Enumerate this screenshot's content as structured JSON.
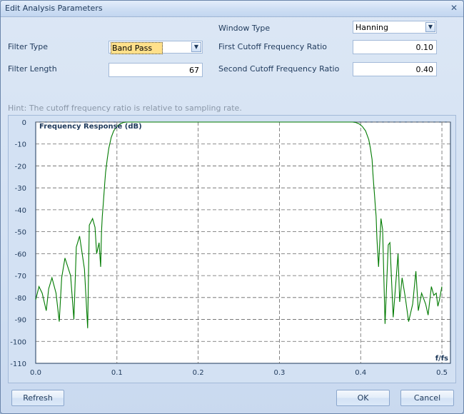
{
  "window": {
    "title": "Edit Analysis Parameters"
  },
  "form": {
    "filter_type": {
      "label": "Filter Type",
      "value": "Band Pass"
    },
    "filter_length": {
      "label": "Filter Length",
      "value": "67"
    },
    "window_type": {
      "label": "Window Type",
      "value": "Hanning"
    },
    "first_cutoff": {
      "label": "First Cutoff Frequency Ratio",
      "value": "0.10"
    },
    "second_cutoff": {
      "label": "Second Cutoff Frequency Ratio",
      "value": "0.40"
    }
  },
  "hint": "Hint: The cutoff frequency ratio is relative to sampling rate.",
  "buttons": {
    "refresh": "Refresh",
    "ok": "OK",
    "cancel": "Cancel"
  },
  "colors": {
    "curve": "#007a00",
    "plot_bg": "#ffffff",
    "grid": "#666666",
    "axis_text": "#1e395b"
  },
  "chart_data": {
    "type": "line",
    "title": "Frequency Response (dB)",
    "xlabel": "f/fs",
    "ylabel": "",
    "xlim": [
      0.0,
      0.5
    ],
    "ylim": [
      -110,
      0
    ],
    "x_ticks": [
      "0.0",
      "0.1",
      "0.2",
      "0.3",
      "0.4",
      "0.5"
    ],
    "y_ticks": [
      "0",
      "-10",
      "-20",
      "-30",
      "-40",
      "-50",
      "-60",
      "-70",
      "-80",
      "-90",
      "-100",
      "-110"
    ],
    "grid": true,
    "series": [
      {
        "x": [
          0.0,
          0.004,
          0.008,
          0.013,
          0.016,
          0.02,
          0.025,
          0.029,
          0.032,
          0.036,
          0.043,
          0.047,
          0.05,
          0.054,
          0.06,
          0.064,
          0.066,
          0.07,
          0.073,
          0.075,
          0.078,
          0.08,
          0.081,
          0.082,
          0.083,
          0.084,
          0.085,
          0.086,
          0.088,
          0.09,
          0.093,
          0.096,
          0.1,
          0.104,
          0.108,
          0.112,
          0.116,
          0.12,
          0.125,
          0.13,
          0.2,
          0.3,
          0.375,
          0.38,
          0.385,
          0.39,
          0.394,
          0.398,
          0.402,
          0.406,
          0.41,
          0.412,
          0.414,
          0.415,
          0.416,
          0.417,
          0.418,
          0.419,
          0.42,
          0.422,
          0.425,
          0.427,
          0.43,
          0.434,
          0.436,
          0.44,
          0.446,
          0.448,
          0.451,
          0.455,
          0.459,
          0.464,
          0.468,
          0.471,
          0.475,
          0.48,
          0.483,
          0.487,
          0.49,
          0.493,
          0.495,
          0.497,
          0.5
        ],
        "y": [
          -81,
          -75,
          -78,
          -86,
          -76,
          -71,
          -78,
          -91,
          -71,
          -62,
          -70,
          -90,
          -57,
          -52,
          -67,
          -94,
          -47,
          -44,
          -48,
          -60,
          -55,
          -66,
          -50,
          -43,
          -38,
          -33,
          -28,
          -23,
          -17,
          -12,
          -7,
          -4,
          -2,
          -0.8,
          -0.2,
          0,
          0,
          0,
          0,
          0,
          0,
          0,
          0,
          0,
          0,
          0,
          -0.2,
          -0.8,
          -2,
          -4,
          -8,
          -12,
          -17,
          -23,
          -28,
          -33,
          -38,
          -43,
          -53,
          -66,
          -44,
          -49,
          -92,
          -56,
          -55,
          -89,
          -60,
          -82,
          -71,
          -80,
          -91,
          -83,
          -68,
          -86,
          -78,
          -83,
          -88,
          -75,
          -79,
          -78,
          -84,
          -81,
          -75
        ]
      }
    ]
  }
}
